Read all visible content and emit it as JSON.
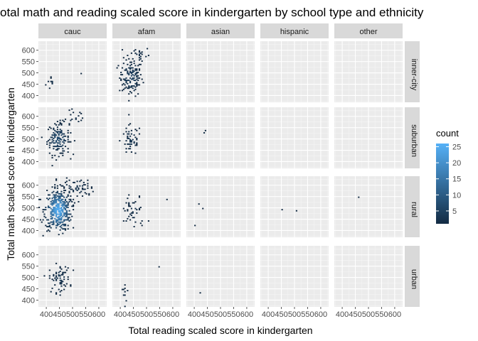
{
  "chart_data": {
    "type": "heatmap",
    "title": "otal math and reading scaled score in kindergarten by school type and ethnicity",
    "xlabel": "Total reading scaled score in kindergarten",
    "ylabel": "Total math scaled score in kindergarten",
    "columns": [
      "cauc",
      "afam",
      "asian",
      "hispanic",
      "other"
    ],
    "rows": [
      "inner-city",
      "suburban",
      "rural",
      "urban"
    ],
    "x_ticks": [
      400,
      450,
      500,
      550,
      600
    ],
    "y_ticks": [
      400,
      450,
      500,
      550,
      600
    ],
    "xlim": [
      370,
      630
    ],
    "ylim": [
      370,
      640
    ],
    "bin_width": 5,
    "legend": {
      "title": "count",
      "ticks": [
        5,
        10,
        15,
        20,
        25
      ],
      "range": [
        1,
        26
      ],
      "low_color": "#132B43",
      "high_color": "#56B1F7",
      "placement": "right"
    },
    "panels": [
      {
        "column": "cauc",
        "row": "inner-city",
        "clusters": [
          {
            "cx": 420,
            "cy": 458,
            "sx": 12,
            "sy": 18,
            "n": 10,
            "peak": 2
          },
          {
            "cx": 530,
            "cy": 500,
            "sx": 2,
            "sy": 2,
            "n": 1,
            "peak": 1
          }
        ]
      },
      {
        "column": "afam",
        "row": "inner-city",
        "clusters": [
          {
            "cx": 440,
            "cy": 480,
            "sx": 22,
            "sy": 40,
            "n": 140,
            "peak": 5
          },
          {
            "cx": 475,
            "cy": 580,
            "sx": 20,
            "sy": 20,
            "n": 25,
            "peak": 2
          }
        ]
      },
      {
        "column": "cauc",
        "row": "suburban",
        "clusters": [
          {
            "cx": 445,
            "cy": 500,
            "sx": 22,
            "sy": 35,
            "n": 150,
            "peak": 7
          },
          {
            "cx": 500,
            "cy": 590,
            "sx": 30,
            "sy": 25,
            "n": 20,
            "peak": 2
          }
        ]
      },
      {
        "column": "afam",
        "row": "suburban",
        "clusters": [
          {
            "cx": 440,
            "cy": 495,
            "sx": 20,
            "sy": 35,
            "n": 55,
            "peak": 3
          }
        ]
      },
      {
        "column": "asian",
        "row": "suburban",
        "clusters": [
          {
            "cx": 440,
            "cy": 530,
            "sx": 6,
            "sy": 8,
            "n": 3,
            "peak": 1
          }
        ]
      },
      {
        "column": "cauc",
        "row": "rural",
        "clusters": [
          {
            "cx": 445,
            "cy": 490,
            "sx": 25,
            "sy": 45,
            "n": 400,
            "peak": 25
          },
          {
            "cx": 510,
            "cy": 590,
            "sx": 35,
            "sy": 25,
            "n": 70,
            "peak": 3
          }
        ]
      },
      {
        "column": "afam",
        "row": "rural",
        "clusters": [
          {
            "cx": 450,
            "cy": 480,
            "sx": 25,
            "sy": 40,
            "n": 45,
            "peak": 2
          },
          {
            "cx": 580,
            "cy": 540,
            "sx": 2,
            "sy": 2,
            "n": 1,
            "peak": 1
          }
        ]
      },
      {
        "column": "asian",
        "row": "rural",
        "clusters": [
          {
            "cx": 430,
            "cy": 500,
            "sx": 8,
            "sy": 15,
            "n": 2,
            "peak": 1
          },
          {
            "cx": 400,
            "cy": 420,
            "sx": 2,
            "sy": 2,
            "n": 1,
            "peak": 1
          }
        ]
      },
      {
        "column": "hispanic",
        "row": "rural",
        "clusters": [
          {
            "cx": 450,
            "cy": 500,
            "sx": 2,
            "sy": 2,
            "n": 1,
            "peak": 1
          },
          {
            "cx": 505,
            "cy": 492,
            "sx": 2,
            "sy": 2,
            "n": 1,
            "peak": 1
          }
        ]
      },
      {
        "column": "other",
        "row": "rural",
        "clusters": [
          {
            "cx": 460,
            "cy": 548,
            "sx": 2,
            "sy": 2,
            "n": 1,
            "peak": 1
          }
        ]
      },
      {
        "column": "cauc",
        "row": "urban",
        "clusters": [
          {
            "cx": 450,
            "cy": 495,
            "sx": 20,
            "sy": 30,
            "n": 70,
            "peak": 3
          }
        ]
      },
      {
        "column": "afam",
        "row": "urban",
        "clusters": [
          {
            "cx": 420,
            "cy": 450,
            "sx": 8,
            "sy": 25,
            "n": 10,
            "peak": 1
          },
          {
            "cx": 550,
            "cy": 545,
            "sx": 2,
            "sy": 2,
            "n": 1,
            "peak": 1
          }
        ]
      },
      {
        "column": "asian",
        "row": "urban",
        "clusters": [
          {
            "cx": 420,
            "cy": 430,
            "sx": 2,
            "sy": 2,
            "n": 1,
            "peak": 1
          }
        ]
      }
    ]
  }
}
